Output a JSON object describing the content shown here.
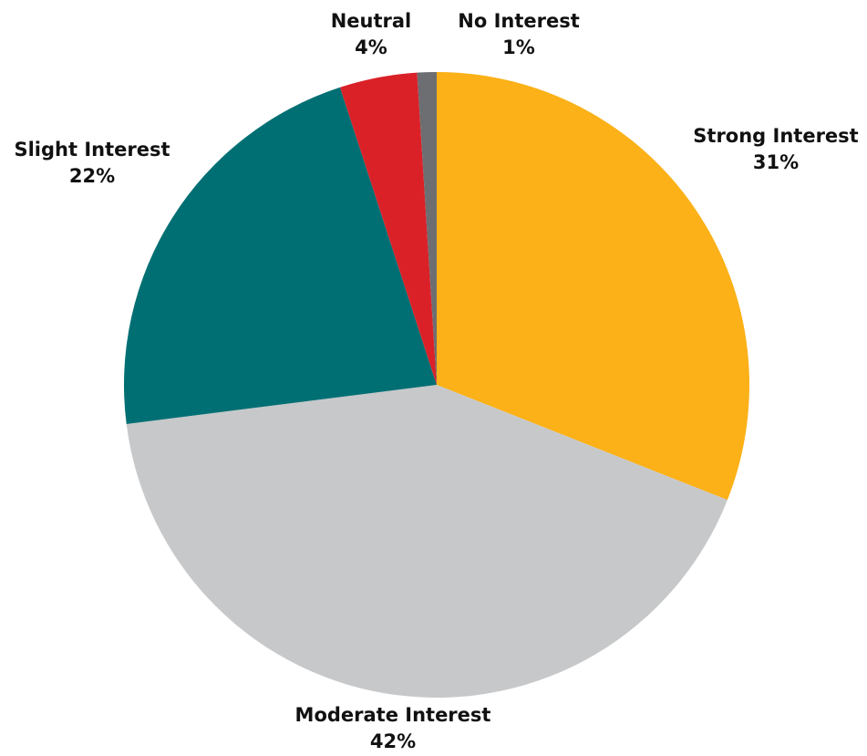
{
  "chart_data": {
    "type": "pie",
    "title": "",
    "slices": [
      {
        "label": "Strong Interest",
        "value": 31,
        "value_label": "31%",
        "color": "#FBB117"
      },
      {
        "label": "Moderate Interest",
        "value": 42,
        "value_label": "42%",
        "color": "#C7C8CA"
      },
      {
        "label": "Slight Interest",
        "value": 22,
        "value_label": "22%",
        "color": "#006F73"
      },
      {
        "label": "Neutral",
        "value": 4,
        "value_label": "4%",
        "color": "#DA2128"
      },
      {
        "label": "No Interest",
        "value": 1,
        "value_label": "1%",
        "color": "#6D6E71"
      }
    ],
    "start_angle": "12 o'clock",
    "direction": "clockwise",
    "legend": "none",
    "labels": "outside"
  }
}
